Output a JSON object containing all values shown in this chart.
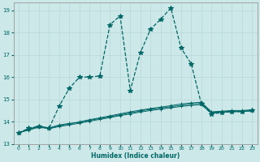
{
  "title": "",
  "xlabel": "Humidex (Indice chaleur)",
  "ylabel": "",
  "bg_color": "#cce8e8",
  "line_color": "#006666",
  "grid_color": "#b8d8d8",
  "x_min": -0.5,
  "x_max": 23.5,
  "y_min": 13,
  "y_max": 19.333,
  "x_ticks": [
    0,
    1,
    2,
    3,
    4,
    5,
    6,
    7,
    8,
    9,
    10,
    11,
    12,
    13,
    14,
    15,
    16,
    17,
    18,
    19,
    20,
    21,
    22,
    23
  ],
  "y_ticks": [
    13,
    14,
    15,
    16,
    17,
    18,
    19
  ],
  "series_main_x": [
    0,
    1,
    2,
    3,
    4,
    5,
    6,
    7,
    8,
    9,
    10,
    11,
    12,
    13,
    14,
    15,
    16,
    17,
    18,
    19,
    20,
    21,
    22,
    23
  ],
  "series_main_y": [
    13.5,
    13.7,
    13.8,
    13.7,
    14.7,
    15.5,
    16.0,
    16.0,
    16.05,
    18.35,
    18.75,
    15.4,
    17.1,
    18.15,
    18.6,
    19.1,
    17.3,
    16.6,
    14.8,
    14.35,
    14.4,
    14.45,
    14.45,
    14.5
  ],
  "series_flat1_x": [
    0,
    1,
    2,
    3,
    4,
    5,
    6,
    7,
    8,
    9,
    10,
    11,
    12,
    13,
    14,
    15,
    16,
    17,
    18,
    19,
    20,
    21,
    22,
    23
  ],
  "series_flat1_y": [
    13.5,
    13.62,
    13.75,
    13.68,
    13.78,
    13.85,
    13.93,
    14.02,
    14.1,
    14.18,
    14.27,
    14.35,
    14.43,
    14.5,
    14.56,
    14.62,
    14.68,
    14.73,
    14.76,
    14.38,
    14.42,
    14.44,
    14.45,
    14.48
  ],
  "series_flat2_x": [
    0,
    1,
    2,
    3,
    4,
    5,
    6,
    7,
    8,
    9,
    10,
    11,
    12,
    13,
    14,
    15,
    16,
    17,
    18,
    19,
    20,
    21,
    22,
    23
  ],
  "series_flat2_y": [
    13.5,
    13.65,
    13.78,
    13.7,
    13.82,
    13.9,
    13.99,
    14.09,
    14.17,
    14.26,
    14.35,
    14.44,
    14.52,
    14.59,
    14.65,
    14.72,
    14.79,
    14.84,
    14.87,
    14.44,
    14.47,
    14.5,
    14.5,
    14.53
  ],
  "series_flat3_x": [
    0,
    1,
    2,
    3,
    4,
    5,
    6,
    7,
    8,
    9,
    10,
    11,
    12,
    13,
    14,
    15,
    16,
    17,
    18,
    19,
    20,
    21,
    22,
    23
  ],
  "series_flat3_y": [
    13.5,
    13.67,
    13.8,
    13.72,
    13.85,
    13.92,
    13.96,
    14.06,
    14.14,
    14.22,
    14.31,
    14.39,
    14.48,
    14.55,
    14.61,
    14.67,
    14.73,
    14.79,
    14.82,
    14.41,
    14.44,
    14.47,
    14.47,
    14.51
  ]
}
